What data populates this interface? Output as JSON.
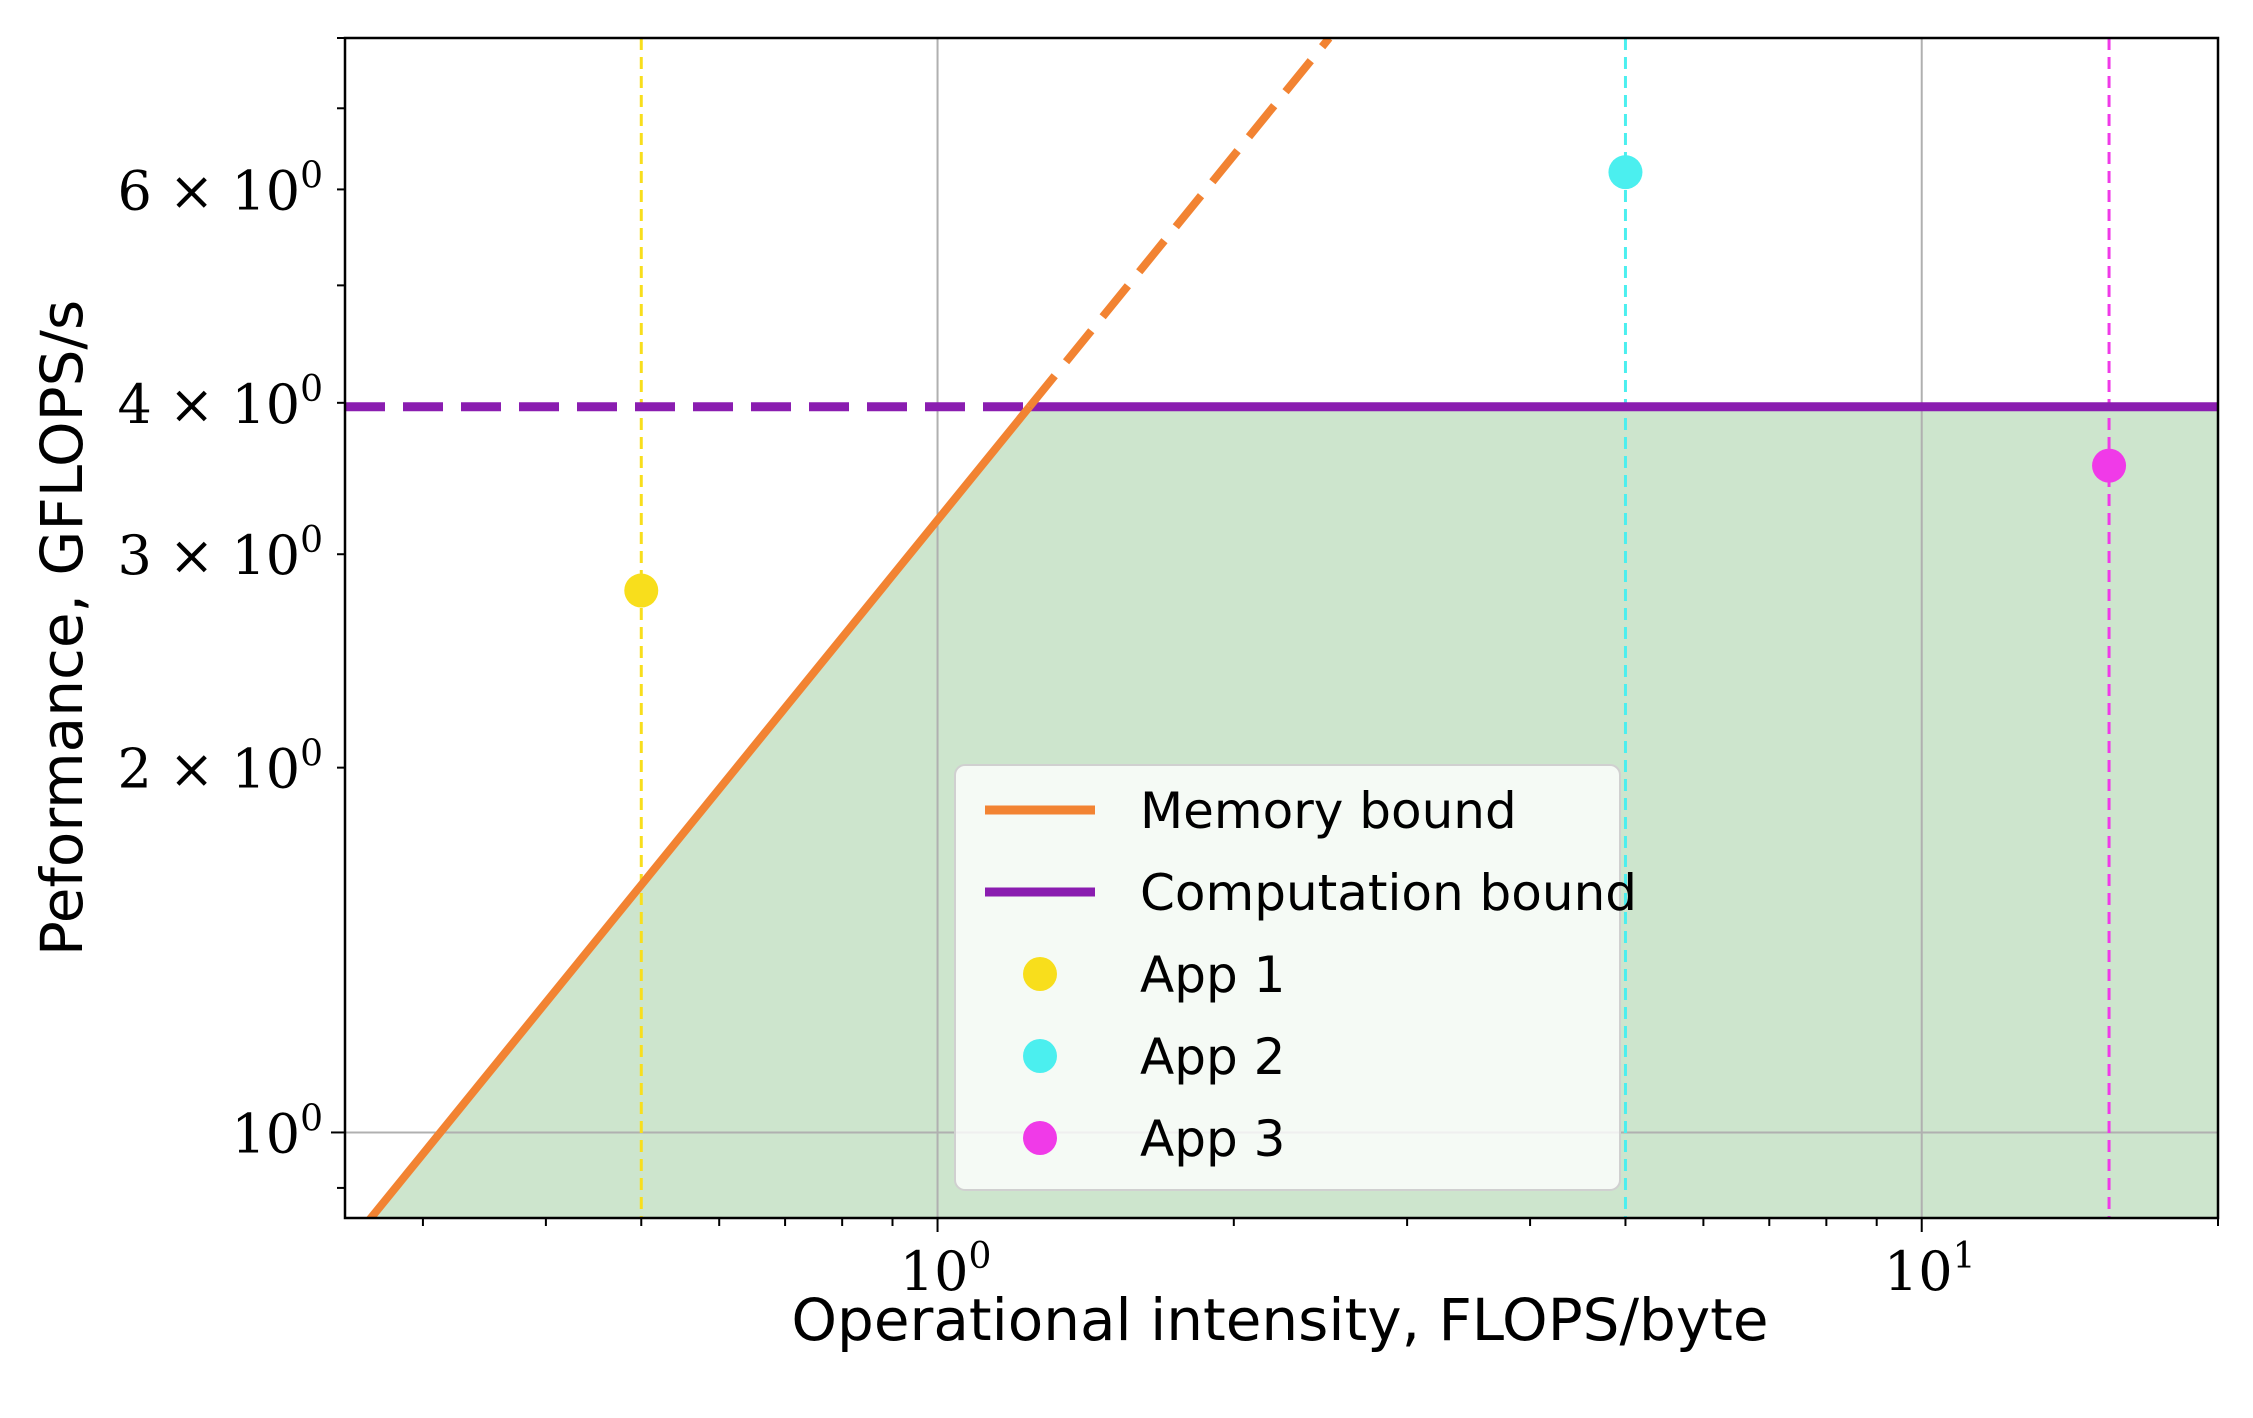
{
  "chart_data": {
    "type": "line",
    "xlabel": "Operational intensity, FLOPS/byte",
    "ylabel": "Peformance, GFLOPS/s",
    "xscale": "log",
    "yscale": "log",
    "xlim": [
      0.25,
      20
    ],
    "ylim": [
      0.85,
      8.0
    ],
    "grid": true,
    "x_major_ticks": [
      {
        "value": 1,
        "mantissa": "",
        "base": "10",
        "exp": "0"
      },
      {
        "value": 10,
        "mantissa": "",
        "base": "10",
        "exp": "1"
      }
    ],
    "y_major_ticks": [
      {
        "value": 1,
        "mantissa": "",
        "base": "10",
        "exp": "0"
      }
    ],
    "y_minor_labels": [
      {
        "value": 2,
        "mantissa": "2 × ",
        "base": "10",
        "exp": "0"
      },
      {
        "value": 3,
        "mantissa": "3 × ",
        "base": "10",
        "exp": "0"
      },
      {
        "value": 4,
        "mantissa": "4 × ",
        "base": "10",
        "exp": "0"
      },
      {
        "value": 6,
        "mantissa": "6 × ",
        "base": "10",
        "exp": "0"
      }
    ],
    "series": [
      {
        "name": "Memory bound",
        "color": "#F28332",
        "x": [
          0.25,
          1.24,
          2.5
        ],
        "y": [
          0.8,
          3.97,
          8.0
        ],
        "solid_until_x": 1.24
      },
      {
        "name": "Computation bound",
        "color": "#8A1DB0",
        "x": [
          0.25,
          1.24,
          20
        ],
        "y": [
          3.97,
          3.97,
          3.97
        ],
        "dashed_until_x": 1.24
      },
      {
        "name": "App 1",
        "color": "#F8DE1C",
        "x": [
          0.5
        ],
        "y": [
          2.8
        ]
      },
      {
        "name": "App 2",
        "color": "#4BEFEF",
        "x": [
          5.0
        ],
        "y": [
          6.2
        ]
      },
      {
        "name": "App 3",
        "color": "#F03AE8",
        "x": [
          15.5
        ],
        "y": [
          3.55
        ]
      }
    ],
    "attainable_region_color": "#CDE5CD",
    "legend_position": "lower-center"
  }
}
